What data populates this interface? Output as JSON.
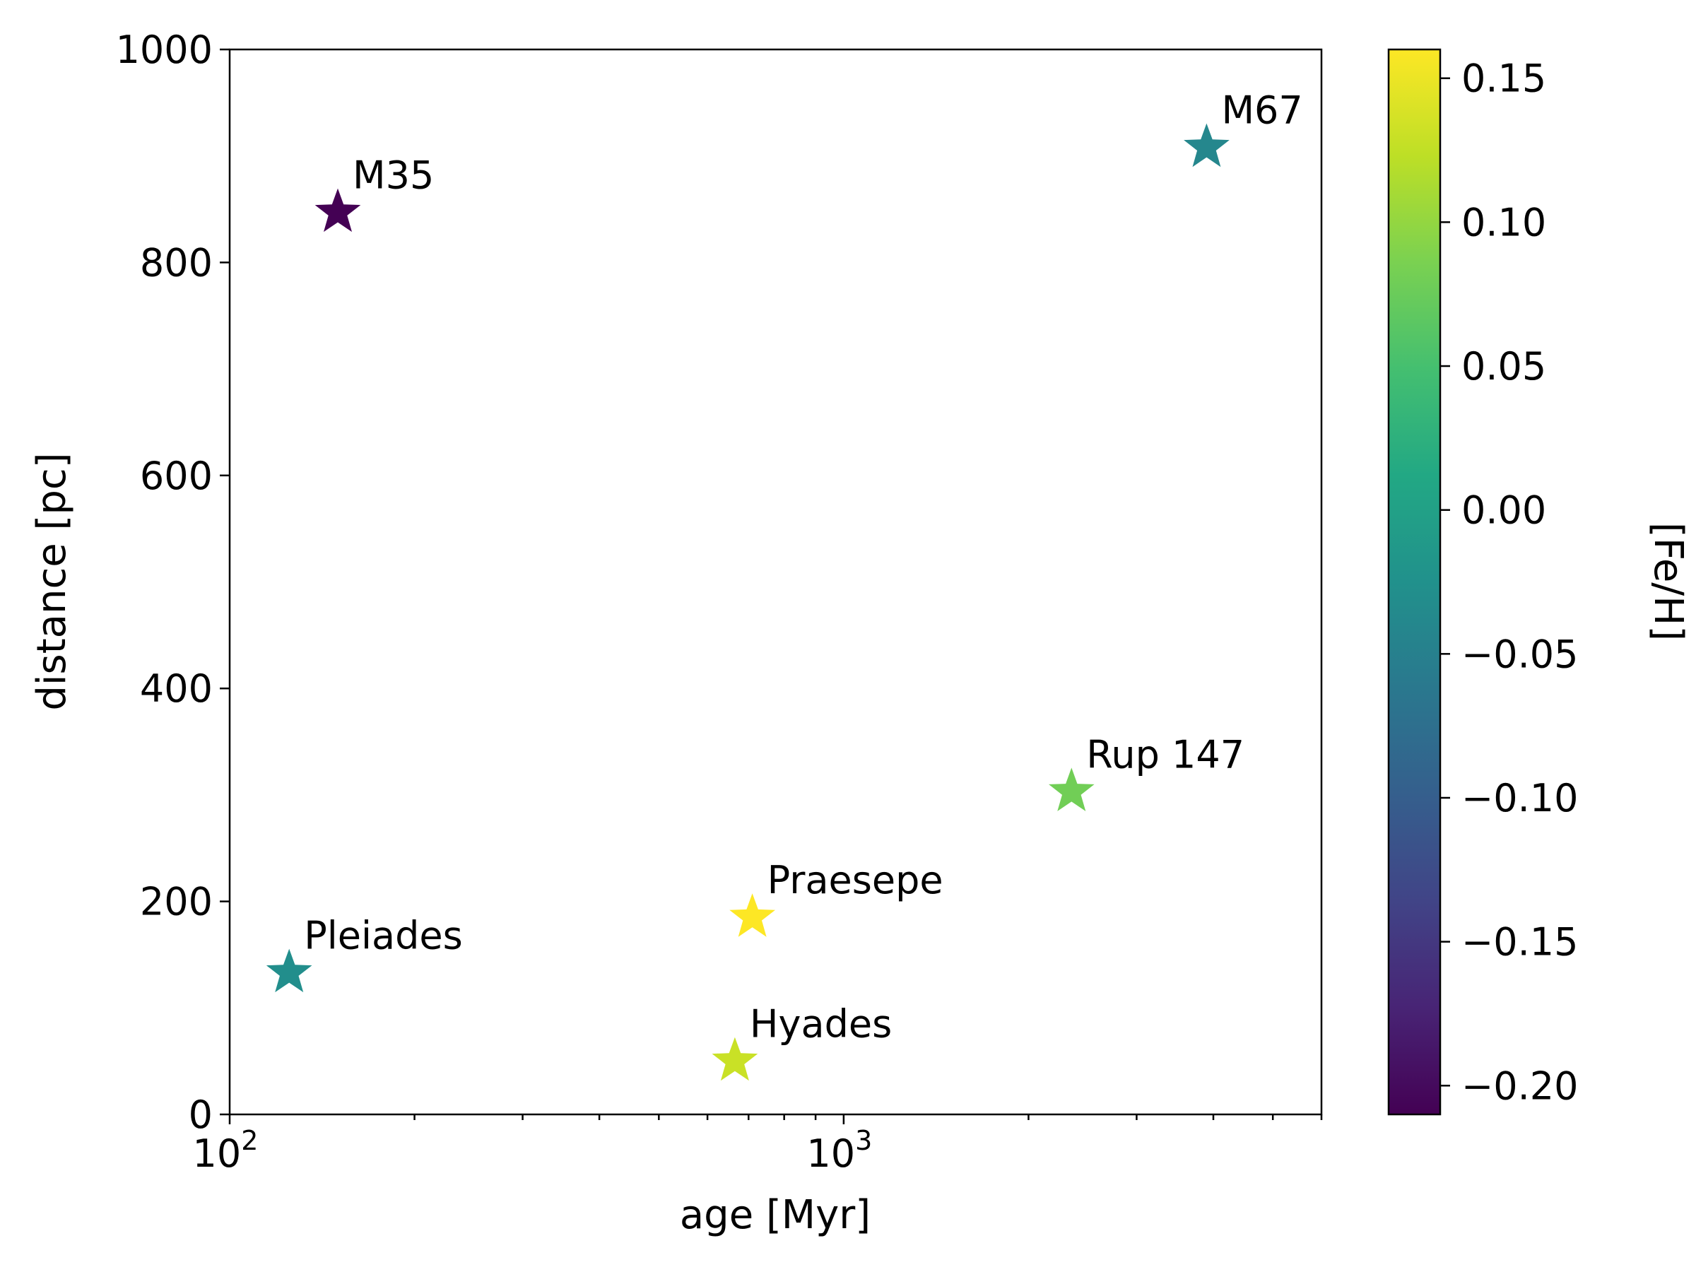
{
  "chart_data": {
    "type": "scatter",
    "title": "",
    "xlabel": "age [Myr]",
    "ylabel": "distance [pc]",
    "xscale": "log",
    "xlim": [
      100,
      6000
    ],
    "ylim": [
      0,
      1000
    ],
    "x_ticks": [
      {
        "value": 100,
        "base": "10",
        "exp": "2"
      },
      {
        "value": 1000,
        "base": "10",
        "exp": "3"
      }
    ],
    "y_ticks": [
      {
        "value": 0,
        "label": "0"
      },
      {
        "value": 200,
        "label": "200"
      },
      {
        "value": 400,
        "label": "400"
      },
      {
        "value": 600,
        "label": "600"
      },
      {
        "value": 800,
        "label": "800"
      },
      {
        "value": 1000,
        "label": "1000"
      }
    ],
    "marker": "star",
    "grid": false,
    "points": [
      {
        "label": "M35",
        "x": 150,
        "y": 847,
        "feh": -0.21
      },
      {
        "label": "M67",
        "x": 3900,
        "y": 908,
        "feh": -0.04
      },
      {
        "label": "Pleiades",
        "x": 125,
        "y": 133,
        "feh": -0.03
      },
      {
        "label": "Praesepe",
        "x": 710,
        "y": 185,
        "feh": 0.16
      },
      {
        "label": "Hyades",
        "x": 665,
        "y": 50,
        "feh": 0.13
      },
      {
        "label": "Rup 147",
        "x": 2350,
        "y": 303,
        "feh": 0.08
      }
    ],
    "colorbar": {
      "label": "[Fe/H]",
      "colormap": "viridis",
      "range": [
        -0.21,
        0.16
      ],
      "ticks": [
        {
          "value": 0.15,
          "label": "0.15"
        },
        {
          "value": 0.1,
          "label": "0.10"
        },
        {
          "value": 0.05,
          "label": "0.05"
        },
        {
          "value": 0.0,
          "label": "0.00"
        },
        {
          "value": -0.05,
          "label": "−0.05"
        },
        {
          "value": -0.1,
          "label": "−0.10"
        },
        {
          "value": -0.15,
          "label": "−0.15"
        },
        {
          "value": -0.2,
          "label": "−0.20"
        }
      ]
    }
  }
}
